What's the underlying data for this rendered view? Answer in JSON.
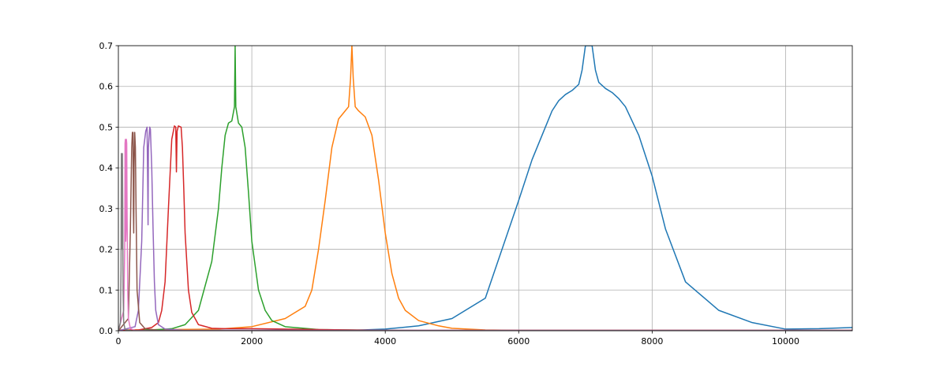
{
  "chart_data": {
    "type": "line",
    "title": "",
    "xlabel": "",
    "ylabel": "",
    "xlim": [
      0,
      11000
    ],
    "ylim": [
      0,
      0.7
    ],
    "xticks": [
      0,
      2000,
      4000,
      6000,
      8000,
      10000
    ],
    "xtick_labels": [
      "0",
      "2000",
      "4000",
      "6000",
      "8000",
      "10000"
    ],
    "yticks": [
      0.0,
      0.1,
      0.2,
      0.3,
      0.4,
      0.5,
      0.6,
      0.7
    ],
    "ytick_labels": [
      "0.0",
      "0.1",
      "0.2",
      "0.3",
      "0.4",
      "0.5",
      "0.6",
      "0.7"
    ],
    "grid": true,
    "legend": "none",
    "series": [
      {
        "color": "#1f77b4",
        "x": [
          0,
          1000,
          2000,
          3000,
          3500,
          4000,
          4500,
          5000,
          5500,
          6000,
          6200,
          6400,
          6500,
          6600,
          6700,
          6800,
          6900,
          6950,
          7000,
          7100,
          7150,
          7200,
          7300,
          7400,
          7500,
          7600,
          7800,
          8000,
          8200,
          8500,
          9000,
          9500,
          10000,
          10500,
          11000
        ],
        "y": [
          0.001,
          0.001,
          0.001,
          0.002,
          0.001,
          0.004,
          0.012,
          0.03,
          0.08,
          0.32,
          0.42,
          0.5,
          0.54,
          0.565,
          0.58,
          0.59,
          0.605,
          0.64,
          0.7,
          0.7,
          0.64,
          0.61,
          0.595,
          0.585,
          0.57,
          0.55,
          0.48,
          0.38,
          0.25,
          0.12,
          0.05,
          0.02,
          0.004,
          0.005,
          0.008
        ]
      },
      {
        "color": "#ff7f0e",
        "x": [
          0,
          1500,
          2000,
          2500,
          2800,
          2900,
          3000,
          3100,
          3200,
          3300,
          3400,
          3450,
          3480,
          3500,
          3520,
          3550,
          3600,
          3700,
          3800,
          3900,
          4000,
          4100,
          4200,
          4300,
          4500,
          4800,
          5000,
          5500,
          6000,
          7000,
          8000,
          9000,
          10000,
          11000
        ],
        "y": [
          0.002,
          0.004,
          0.01,
          0.03,
          0.06,
          0.1,
          0.2,
          0.32,
          0.45,
          0.52,
          0.54,
          0.55,
          0.62,
          0.7,
          0.62,
          0.55,
          0.54,
          0.525,
          0.48,
          0.37,
          0.24,
          0.14,
          0.08,
          0.05,
          0.025,
          0.012,
          0.006,
          0.002,
          0.001,
          0.001,
          0.001,
          0.001,
          0.001,
          0.001
        ]
      },
      {
        "color": "#2ca02c",
        "x": [
          0,
          500,
          800,
          1000,
          1200,
          1400,
          1500,
          1550,
          1600,
          1650,
          1700,
          1740,
          1750,
          1760,
          1800,
          1850,
          1900,
          1950,
          2000,
          2100,
          2200,
          2300,
          2500,
          3000,
          4000,
          5000,
          6000,
          8000,
          10000,
          11000
        ],
        "y": [
          0.001,
          0.002,
          0.005,
          0.015,
          0.05,
          0.17,
          0.3,
          0.4,
          0.48,
          0.51,
          0.515,
          0.55,
          0.7,
          0.55,
          0.51,
          0.5,
          0.45,
          0.34,
          0.22,
          0.1,
          0.05,
          0.025,
          0.01,
          0.003,
          0.001,
          0.0,
          0.0,
          0.0,
          0.0,
          0.0
        ]
      },
      {
        "color": "#d62728",
        "x": [
          0,
          300,
          500,
          600,
          650,
          700,
          750,
          800,
          840,
          860,
          870,
          880,
          900,
          940,
          960,
          980,
          1000,
          1050,
          1100,
          1200,
          1400,
          1600,
          2000,
          3000,
          4000,
          6000,
          8000,
          11000
        ],
        "y": [
          0.001,
          0.002,
          0.008,
          0.02,
          0.05,
          0.12,
          0.3,
          0.47,
          0.503,
          0.5,
          0.39,
          0.49,
          0.503,
          0.5,
          0.45,
          0.35,
          0.24,
          0.1,
          0.045,
          0.015,
          0.006,
          0.005,
          0.005,
          0.003,
          0.001,
          0.001,
          0.001,
          0.001
        ]
      },
      {
        "color": "#9467bd",
        "x": [
          0,
          250,
          300,
          350,
          380,
          410,
          430,
          440,
          445,
          450,
          470,
          480,
          500,
          520,
          540,
          560,
          600,
          700,
          1000,
          2000,
          4000,
          6000,
          8000,
          10000,
          11000
        ],
        "y": [
          0.0,
          0.01,
          0.05,
          0.22,
          0.45,
          0.49,
          0.5,
          0.35,
          0.26,
          0.45,
          0.5,
          0.495,
          0.4,
          0.25,
          0.12,
          0.05,
          0.015,
          0.004,
          0.001,
          0.001,
          0.001,
          0.001,
          0.001,
          0.001,
          0.001
        ]
      },
      {
        "color": "#8c564b",
        "x": [
          0,
          150,
          180,
          200,
          210,
          220,
          225,
          230,
          235,
          245,
          255,
          265,
          280,
          320,
          400,
          600,
          1000,
          2000,
          11000
        ],
        "y": [
          0.0,
          0.03,
          0.25,
          0.45,
          0.487,
          0.487,
          0.3,
          0.24,
          0.4,
          0.487,
          0.45,
          0.3,
          0.1,
          0.02,
          0.005,
          0.001,
          0.0,
          0.0,
          0.0
        ]
      },
      {
        "color": "#e377c2",
        "x": [
          0,
          80,
          95,
          100,
          105,
          110,
          115,
          120,
          125,
          130,
          140,
          150,
          180,
          250,
          500,
          1000,
          11000
        ],
        "y": [
          0.0,
          0.05,
          0.2,
          0.46,
          0.47,
          0.22,
          0.25,
          0.47,
          0.46,
          0.3,
          0.1,
          0.03,
          0.005,
          0.001,
          0.0,
          0.0,
          0.0
        ]
      },
      {
        "color": "#7f7f7f",
        "x": [
          0,
          30,
          40,
          45,
          50,
          55,
          60,
          65,
          70,
          80,
          100,
          200,
          11000
        ],
        "y": [
          0.0,
          0.02,
          0.15,
          0.435,
          0.3,
          0.2,
          0.435,
          0.3,
          0.1,
          0.02,
          0.003,
          0.0,
          0.0
        ]
      }
    ]
  }
}
